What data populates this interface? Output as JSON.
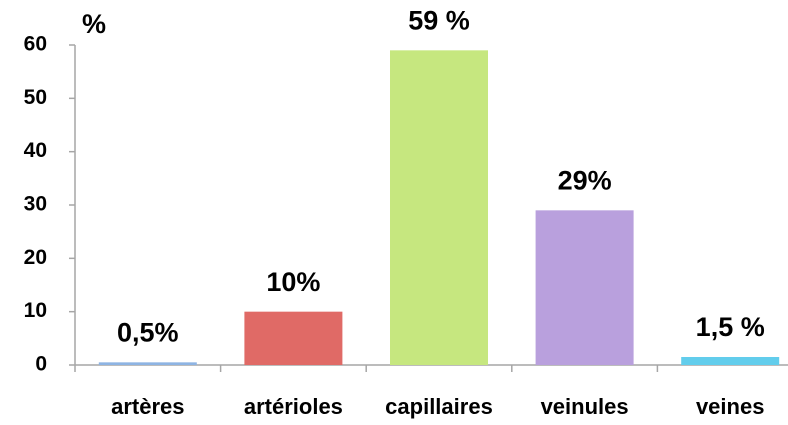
{
  "chart_data": {
    "type": "bar",
    "y_axis_label": "%",
    "categories": [
      "artères",
      "artérioles",
      "capillaires",
      "veinules",
      "veines"
    ],
    "values": [
      0.5,
      10,
      59,
      29,
      1.5
    ],
    "value_labels": [
      "0,5%",
      "10%",
      "59 %",
      "29%",
      "1,5 %"
    ],
    "colors": [
      "#8eb4e3",
      "#e06a66",
      "#c6e77f",
      "#b9a0dd",
      "#62cdec"
    ],
    "ylim": [
      0,
      60
    ],
    "yticks": [
      0,
      10,
      20,
      30,
      40,
      50,
      60
    ],
    "grid": false
  }
}
